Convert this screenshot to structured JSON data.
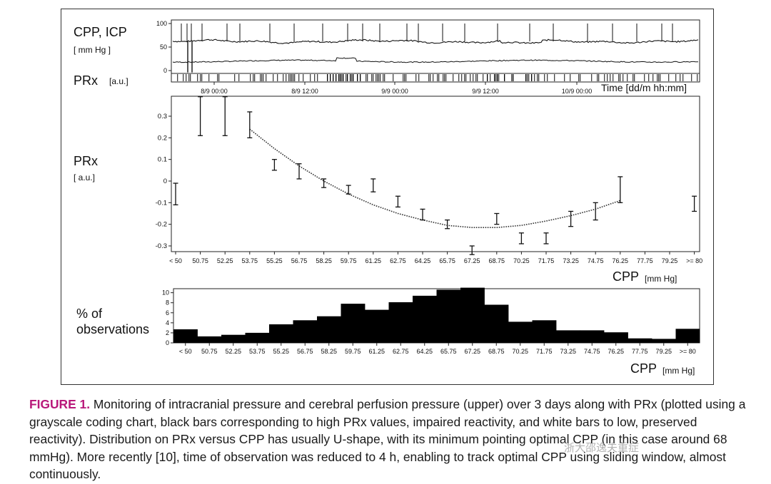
{
  "monitor_panel": {
    "cpp_icp_label": "CPP, ICP",
    "cpp_icp_unit": "[ mm Hg ]",
    "prx_label": "PRx",
    "prx_unit": "[a.u.]",
    "y_ticks": [
      "100",
      "50",
      "0"
    ],
    "time_ticks": [
      "8/9 00:00",
      "8/9 12:00",
      "9/9 00:00",
      "9/9 12:00",
      "10/9 00:00"
    ],
    "time_axis_label": "Time [dd/m hh:mm]"
  },
  "prx_panel": {
    "ylabel": "PRx",
    "yunit": "[ a.u.]",
    "xlabel": "CPP",
    "xunit": "[mm Hg]"
  },
  "hist_panel": {
    "ylabel_line1": "% of",
    "ylabel_line2": "observations",
    "xlabel": "CPP",
    "xunit": "[mm Hg]"
  },
  "caption": {
    "label": "FIGURE 1.",
    "text": " Monitoring of intracranial pressure and cerebral perfusion pressure (upper) over 3 days along with PRx (plotted using a grayscale coding chart, black bars corresponding to high PRx values, impaired reactivity, and white bars to low, preserved reactivity). Distribution on PRx versus CPP has usually U-shape, with its minimum pointing optimal CPP (in this case around 68 mmHg). More recently [10], time of observation was reduced to 4 h, enabling to track optimal CPP using sliding window, almost continuously."
  },
  "watermark": "浙大邵逸夫重症",
  "chart_data": [
    {
      "type": "line",
      "title": "CPP, ICP [ mm Hg ]",
      "xlabel": "Time [dd/m hh:mm]",
      "ylabel": "",
      "x": [
        "8/9 00:00",
        "8/9 12:00",
        "9/9 00:00",
        "9/9 12:00",
        "10/9 00:00"
      ],
      "ylim": [
        0,
        100
      ],
      "yticks": [
        0,
        50,
        100
      ],
      "series": [
        {
          "name": "CPP",
          "mean_value": 70
        },
        {
          "name": "ICP",
          "mean_value": 20
        }
      ]
    },
    {
      "type": "scatter",
      "title": "",
      "xlabel": "CPP [mm Hg]",
      "ylabel": "PRx [ a.u.]",
      "categories": [
        "< 50",
        "50.75",
        "52.25",
        "53.75",
        "55.25",
        "56.75",
        "58.25",
        "59.75",
        "61.25",
        "62.75",
        "64.25",
        "65.75",
        "67.25",
        "68.75",
        "70.25",
        "71.75",
        "73.25",
        "74.75",
        "76.25",
        "77.75",
        "79.25",
        ">= 80"
      ],
      "yticks": [
        -0.3,
        -0.2,
        -0.1,
        0,
        0.1,
        0.2,
        0.3
      ],
      "ylim": [
        -0.33,
        0.39
      ],
      "grid": false,
      "series": [
        {
          "name": "PRx mean",
          "values": [
            -0.06,
            0.33,
            0.31,
            0.27,
            0.08,
            0.04,
            0.0,
            -0.04,
            -0.02,
            -0.09,
            -0.15,
            -0.2,
            -0.32,
            -0.18,
            -0.26,
            -0.26,
            -0.17,
            -0.14,
            -0.04,
            null,
            null,
            -0.1
          ]
        },
        {
          "name": "PRx lower",
          "values": [
            -0.11,
            0.21,
            0.21,
            0.2,
            0.05,
            0.01,
            -0.03,
            -0.06,
            -0.05,
            -0.12,
            -0.18,
            -0.22,
            -0.34,
            -0.2,
            -0.29,
            -0.29,
            -0.21,
            -0.18,
            -0.1,
            null,
            null,
            -0.14
          ]
        },
        {
          "name": "PRx upper",
          "values": [
            -0.01,
            0.39,
            0.39,
            0.32,
            0.1,
            0.08,
            0.01,
            -0.02,
            0.01,
            -0.07,
            -0.13,
            -0.18,
            -0.3,
            -0.15,
            -0.24,
            -0.24,
            -0.14,
            -0.1,
            0.02,
            null,
            null,
            -0.07
          ]
        }
      ],
      "fit_curve": {
        "x": [
          "53.75",
          "55.25",
          "56.75",
          "58.25",
          "59.75",
          "61.25",
          "62.75",
          "64.25",
          "65.75",
          "67.25",
          "68.75",
          "70.25",
          "71.75",
          "73.25",
          "74.75",
          "76.25"
        ],
        "values": [
          0.24,
          0.15,
          0.07,
          0.0,
          -0.06,
          -0.11,
          -0.15,
          -0.18,
          -0.205,
          -0.215,
          -0.215,
          -0.205,
          -0.185,
          -0.16,
          -0.13,
          -0.09
        ]
      }
    },
    {
      "type": "bar",
      "title": "",
      "xlabel": "CPP [mm Hg]",
      "ylabel": "% of observations",
      "categories": [
        "< 50",
        "50.75",
        "52.25",
        "53.75",
        "55.25",
        "56.75",
        "58.25",
        "59.75",
        "61.25",
        "62.75",
        "64.25",
        "65.75",
        "67.25",
        "68.75",
        "70.25",
        "71.75",
        "73.25",
        "74.75",
        "76.25",
        "77.75",
        "79.25",
        ">= 80"
      ],
      "values": [
        2.7,
        1.3,
        1.6,
        2.0,
        3.7,
        4.5,
        5.3,
        7.8,
        6.6,
        8.1,
        9.4,
        10.6,
        11.0,
        7.6,
        4.2,
        4.5,
        2.5,
        2.5,
        2.1,
        0.9,
        0.8,
        2.8
      ],
      "yticks": [
        0,
        2,
        4,
        6,
        8,
        10
      ],
      "ylim": [
        0,
        10.8
      ],
      "grid": false
    }
  ]
}
